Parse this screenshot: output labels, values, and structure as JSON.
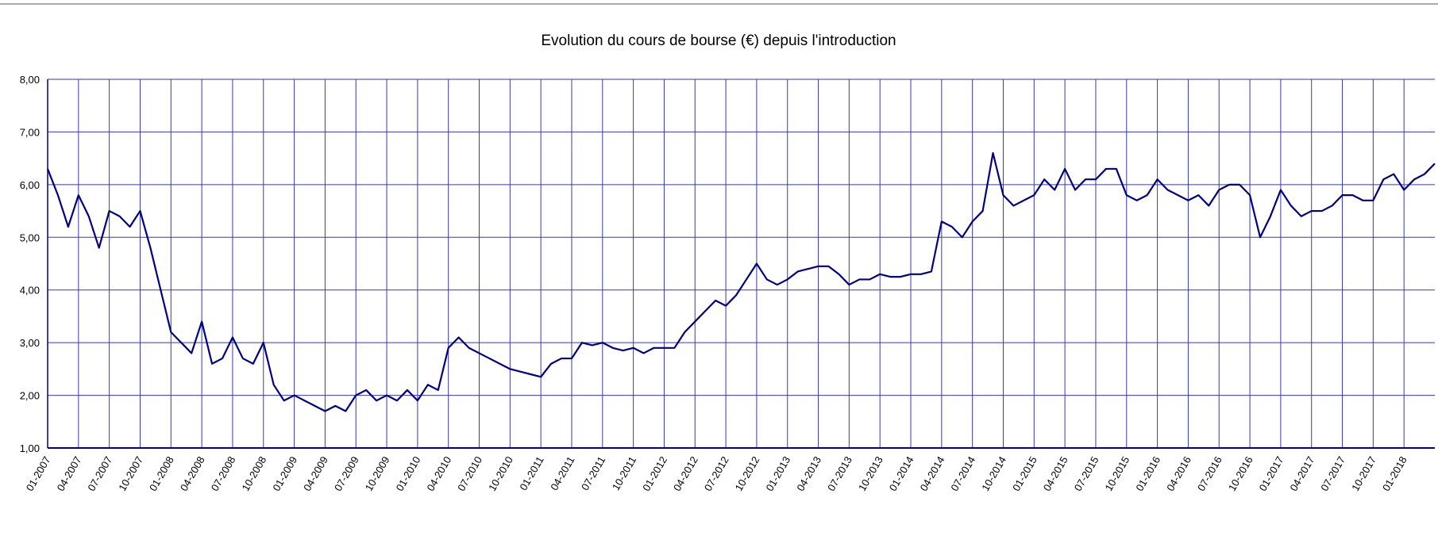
{
  "chart_data": {
    "type": "line",
    "title": "Evolution du cours de bourse (€) depuis l'introduction",
    "color": "#000080",
    "grid": true,
    "x": [
      "01-2007",
      "02-2007",
      "03-2007",
      "04-2007",
      "05-2007",
      "06-2007",
      "07-2007",
      "08-2007",
      "09-2007",
      "10-2007",
      "11-2007",
      "12-2007",
      "01-2008",
      "02-2008",
      "03-2008",
      "04-2008",
      "05-2008",
      "06-2008",
      "07-2008",
      "08-2008",
      "09-2008",
      "10-2008",
      "11-2008",
      "12-2008",
      "01-2009",
      "02-2009",
      "03-2009",
      "04-2009",
      "05-2009",
      "06-2009",
      "07-2009",
      "08-2009",
      "09-2009",
      "10-2009",
      "11-2009",
      "12-2009",
      "01-2010",
      "02-2010",
      "03-2010",
      "04-2010",
      "05-2010",
      "06-2010",
      "07-2010",
      "08-2010",
      "09-2010",
      "10-2010",
      "11-2010",
      "12-2010",
      "01-2011",
      "02-2011",
      "03-2011",
      "04-2011",
      "05-2011",
      "06-2011",
      "07-2011",
      "08-2011",
      "09-2011",
      "10-2011",
      "11-2011",
      "12-2011",
      "01-2012",
      "02-2012",
      "03-2012",
      "04-2012",
      "05-2012",
      "06-2012",
      "07-2012",
      "08-2012",
      "09-2012",
      "10-2012",
      "11-2012",
      "12-2012",
      "01-2013",
      "02-2013",
      "03-2013",
      "04-2013",
      "05-2013",
      "06-2013",
      "07-2013",
      "08-2013",
      "09-2013",
      "10-2013",
      "11-2013",
      "12-2013",
      "01-2014",
      "02-2014",
      "03-2014",
      "04-2014",
      "05-2014",
      "06-2014",
      "07-2014",
      "08-2014",
      "09-2014",
      "10-2014",
      "11-2014",
      "12-2014",
      "01-2015",
      "02-2015",
      "03-2015",
      "04-2015",
      "05-2015",
      "06-2015",
      "07-2015",
      "08-2015",
      "09-2015",
      "10-2015",
      "11-2015",
      "12-2015",
      "01-2016",
      "02-2016",
      "03-2016",
      "04-2016",
      "05-2016",
      "06-2016",
      "07-2016",
      "08-2016",
      "09-2016",
      "10-2016",
      "11-2016",
      "12-2016",
      "01-2017",
      "02-2017",
      "03-2017",
      "04-2017",
      "05-2017",
      "06-2017",
      "07-2017",
      "08-2017",
      "09-2017",
      "10-2017",
      "11-2017",
      "12-2017",
      "01-2018",
      "02-2018",
      "03-2018",
      "04-2018"
    ],
    "values": [
      6.3,
      5.8,
      5.2,
      5.8,
      5.4,
      4.8,
      5.5,
      5.4,
      5.2,
      5.5,
      4.8,
      4.0,
      3.2,
      3.0,
      2.8,
      3.4,
      2.6,
      2.7,
      3.1,
      2.7,
      2.6,
      3.0,
      2.2,
      1.9,
      2.0,
      1.9,
      1.8,
      1.7,
      1.8,
      1.7,
      2.0,
      2.1,
      1.9,
      2.0,
      1.9,
      2.1,
      1.9,
      2.2,
      2.1,
      2.9,
      3.1,
      2.9,
      2.8,
      2.7,
      2.6,
      2.5,
      2.45,
      2.4,
      2.35,
      2.6,
      2.7,
      2.7,
      3.0,
      2.95,
      3.0,
      2.9,
      2.85,
      2.9,
      2.8,
      2.9,
      2.9,
      2.9,
      3.2,
      3.4,
      3.6,
      3.8,
      3.7,
      3.9,
      4.2,
      4.5,
      4.2,
      4.1,
      4.2,
      4.35,
      4.4,
      4.45,
      4.45,
      4.3,
      4.1,
      4.2,
      4.2,
      4.3,
      4.25,
      4.25,
      4.3,
      4.3,
      4.35,
      5.3,
      5.2,
      5.0,
      5.3,
      5.5,
      6.6,
      5.8,
      5.6,
      5.7,
      5.8,
      6.1,
      5.9,
      6.3,
      5.9,
      6.1,
      6.1,
      6.3,
      6.3,
      5.8,
      5.7,
      5.8,
      6.1,
      5.9,
      5.8,
      5.7,
      5.8,
      5.6,
      5.9,
      6.0,
      6.0,
      5.8,
      5.0,
      5.4,
      5.9,
      5.6,
      5.4,
      5.5,
      5.5,
      5.6,
      5.8,
      5.8,
      5.7,
      5.7,
      6.1,
      6.2,
      5.9,
      6.1,
      6.2,
      6.4
    ],
    "xlim": [
      "01-2007",
      "04-2018"
    ],
    "xticks": [
      "01-2007",
      "04-2007",
      "07-2007",
      "10-2007",
      "01-2008",
      "04-2008",
      "07-2008",
      "10-2008",
      "01-2009",
      "04-2009",
      "07-2009",
      "10-2009",
      "01-2010",
      "04-2010",
      "07-2010",
      "10-2010",
      "01-2011",
      "04-2011",
      "07-2011",
      "10-2011",
      "01-2012",
      "04-2012",
      "07-2012",
      "10-2012",
      "01-2013",
      "04-2013",
      "07-2013",
      "10-2013",
      "01-2014",
      "04-2014",
      "07-2014",
      "10-2014",
      "01-2015",
      "04-2015",
      "07-2015",
      "10-2015",
      "01-2016",
      "04-2016",
      "07-2016",
      "10-2016",
      "01-2017",
      "04-2017",
      "07-2017",
      "10-2017",
      "01-2018"
    ],
    "ylim": [
      1,
      8
    ],
    "yticks": [
      {
        "value": 1,
        "label": "1,00"
      },
      {
        "value": 2,
        "label": "2,00"
      },
      {
        "value": 3,
        "label": "3,00"
      },
      {
        "value": 4,
        "label": "4,00"
      },
      {
        "value": 5,
        "label": "5,00"
      },
      {
        "value": 6,
        "label": "6,00"
      },
      {
        "value": 7,
        "label": "7,00"
      },
      {
        "value": 8,
        "label": "8,00"
      }
    ]
  }
}
